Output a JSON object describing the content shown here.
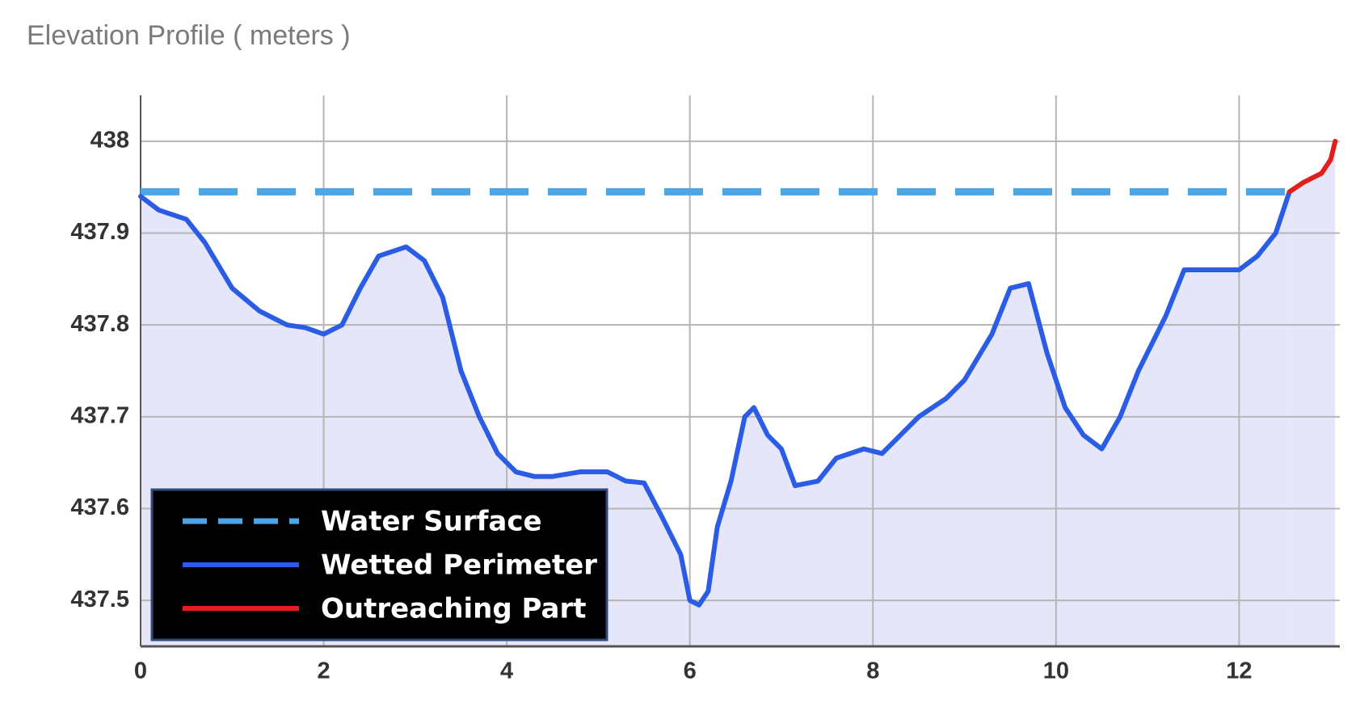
{
  "chart_data": {
    "type": "line",
    "title": "Elevation Profile ( meters )",
    "xlim": [
      0,
      13.1
    ],
    "ylim": [
      437.45,
      438.05
    ],
    "xticks": [
      0,
      2,
      4,
      6,
      8,
      10,
      12
    ],
    "yticks": [
      437.5,
      437.6,
      437.7,
      437.8,
      437.9,
      438
    ],
    "grid": true,
    "fill_under": "#e6e6fa",
    "series": [
      {
        "name": "Water Surface",
        "color": "#4da6e8",
        "style": "dashed",
        "x": [
          0,
          12.55
        ],
        "values": [
          437.945,
          437.945
        ]
      },
      {
        "name": "Wetted Perimeter",
        "color": "#2b5ce6",
        "style": "solid",
        "x": [
          0,
          0.2,
          0.5,
          0.7,
          1.0,
          1.3,
          1.6,
          1.8,
          2.0,
          2.2,
          2.4,
          2.6,
          2.9,
          3.1,
          3.3,
          3.5,
          3.7,
          3.9,
          4.1,
          4.3,
          4.5,
          4.8,
          5.1,
          5.3,
          5.5,
          5.7,
          5.9,
          6.0,
          6.1,
          6.2,
          6.3,
          6.45,
          6.6,
          6.7,
          6.85,
          7.0,
          7.15,
          7.4,
          7.6,
          7.9,
          8.1,
          8.3,
          8.5,
          8.8,
          9.0,
          9.3,
          9.5,
          9.7,
          9.9,
          10.1,
          10.3,
          10.5,
          10.7,
          10.9,
          11.2,
          11.4,
          11.8,
          12.0,
          12.2,
          12.4,
          12.55
        ],
        "values": [
          437.94,
          437.925,
          437.915,
          437.89,
          437.84,
          437.815,
          437.8,
          437.797,
          437.79,
          437.8,
          437.84,
          437.875,
          437.885,
          437.87,
          437.83,
          437.75,
          437.7,
          437.66,
          437.64,
          437.635,
          437.635,
          437.64,
          437.64,
          437.63,
          437.628,
          437.59,
          437.55,
          437.5,
          437.495,
          437.51,
          437.58,
          437.63,
          437.7,
          437.71,
          437.68,
          437.665,
          437.625,
          437.63,
          437.655,
          437.665,
          437.66,
          437.68,
          437.7,
          437.72,
          437.74,
          437.79,
          437.84,
          437.845,
          437.77,
          437.71,
          437.68,
          437.665,
          437.7,
          437.75,
          437.81,
          437.86,
          437.86,
          437.86,
          437.875,
          437.9,
          437.945
        ]
      },
      {
        "name": "Outreaching Part",
        "color": "#e0201c",
        "style": "solid",
        "x": [
          12.55,
          12.7,
          12.9,
          13.0,
          13.05
        ],
        "values": [
          437.945,
          437.955,
          437.965,
          437.98,
          438.0
        ]
      }
    ]
  }
}
